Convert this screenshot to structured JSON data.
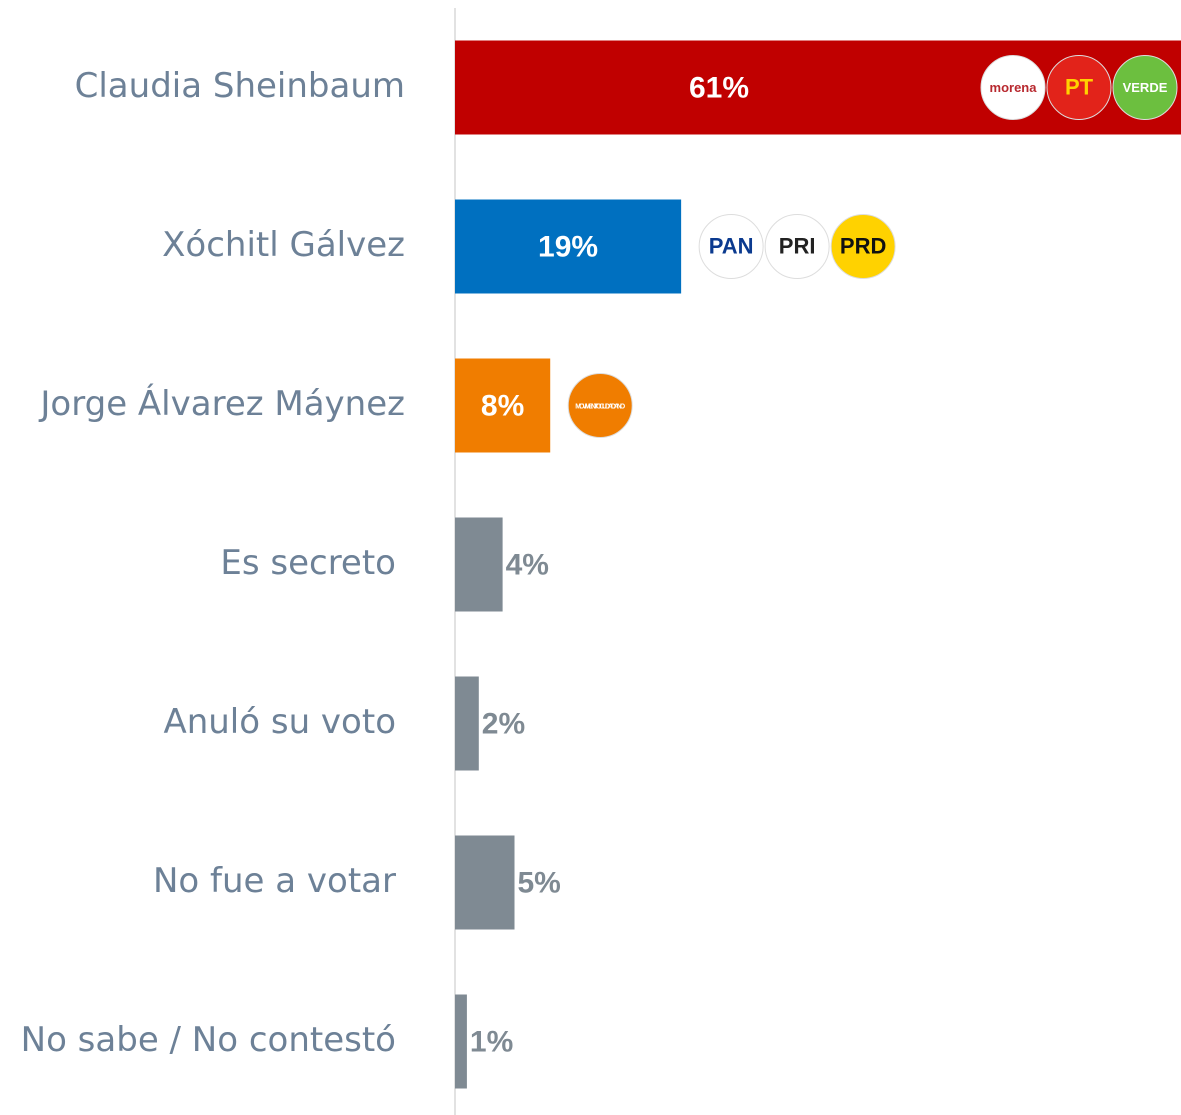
{
  "chart_data": {
    "type": "bar",
    "orientation": "horizontal",
    "categories": [
      "Claudia Sheinbaum",
      "Xóchitl Gálvez",
      "Jorge Álvarez Máynez",
      "Es secreto",
      "Anuló su voto",
      "No fue a votar",
      "No sabe / No contestó"
    ],
    "values": [
      61,
      19,
      8,
      4,
      2,
      5,
      1
    ],
    "value_labels": [
      "61%",
      "19%",
      "8%",
      "4%",
      "2%",
      "5%",
      "1%"
    ],
    "colors": [
      "#c00000",
      "#0070c0",
      "#f07d00",
      "#7f8a93",
      "#7f8a93",
      "#7f8a93",
      "#7f8a93"
    ],
    "logos": [
      [
        {
          "label": "morena",
          "color": "#ffffff",
          "text_color": "#b8292f"
        },
        {
          "label": "PT",
          "color": "#e2231a",
          "text_color": "#ffd200"
        },
        {
          "label": "VERDE",
          "color": "#6cbf3f",
          "text_color": "#ffffff"
        }
      ],
      [
        {
          "label": "PAN",
          "color": "#ffffff",
          "text_color": "#0b3a8f"
        },
        {
          "label": "PRI",
          "color": "#ffffff",
          "text_color": "#222222"
        },
        {
          "label": "PRD",
          "color": "#ffd200",
          "text_color": "#111111"
        }
      ],
      [
        {
          "label": "MOVIMIENTO CIUDADANO",
          "color": "#f07d00",
          "text_color": "#ffffff"
        }
      ],
      null,
      null,
      null,
      null
    ]
  }
}
